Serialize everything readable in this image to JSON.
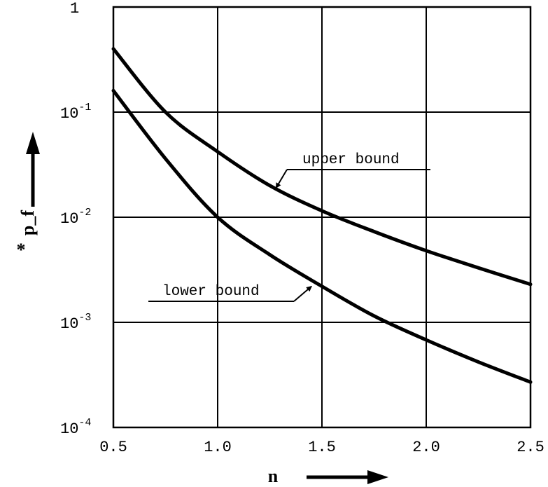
{
  "chart_data": {
    "type": "line",
    "title": "",
    "xlabel": "n",
    "ylabel": "p_f",
    "ylabel_superscript": "*",
    "y_scale": "log",
    "xlim": [
      0.5,
      2.5
    ],
    "ylim": [
      0.0001,
      1
    ],
    "grid": true,
    "x_ticks": [
      {
        "value": 0.5,
        "label": "0.5"
      },
      {
        "value": 1.0,
        "label": "1.0"
      },
      {
        "value": 1.5,
        "label": "1.5"
      },
      {
        "value": 2.0,
        "label": "2.0"
      },
      {
        "value": 2.5,
        "label": "2.5"
      }
    ],
    "y_ticks": [
      {
        "value": 1,
        "base": "1",
        "exp": ""
      },
      {
        "value": 0.1,
        "base": "10",
        "exp": "-1"
      },
      {
        "value": 0.01,
        "base": "10",
        "exp": "-2"
      },
      {
        "value": 0.001,
        "base": "10",
        "exp": "-3"
      },
      {
        "value": 0.0001,
        "base": "10",
        "exp": "-4"
      }
    ],
    "series": [
      {
        "name": "upper bound",
        "x": [
          0.5,
          0.75,
          1.0,
          1.25,
          1.5,
          1.75,
          2.0,
          2.25,
          2.5
        ],
        "y": [
          0.4,
          0.1,
          0.042,
          0.02,
          0.0115,
          0.0073,
          0.0048,
          0.0033,
          0.0023
        ]
      },
      {
        "name": "lower bound",
        "x": [
          0.5,
          0.75,
          1.0,
          1.25,
          1.5,
          1.75,
          2.0,
          2.25,
          2.5
        ],
        "y": [
          0.16,
          0.036,
          0.01,
          0.0044,
          0.0022,
          0.00115,
          0.00068,
          0.00042,
          0.00027
        ]
      }
    ],
    "annotations": [
      {
        "text": "upper bound",
        "series": "upper bound",
        "x": 1.28,
        "y": 0.019
      },
      {
        "text": "lower bound",
        "series": "lower bound",
        "x": 1.45,
        "y": 0.0022
      }
    ]
  }
}
